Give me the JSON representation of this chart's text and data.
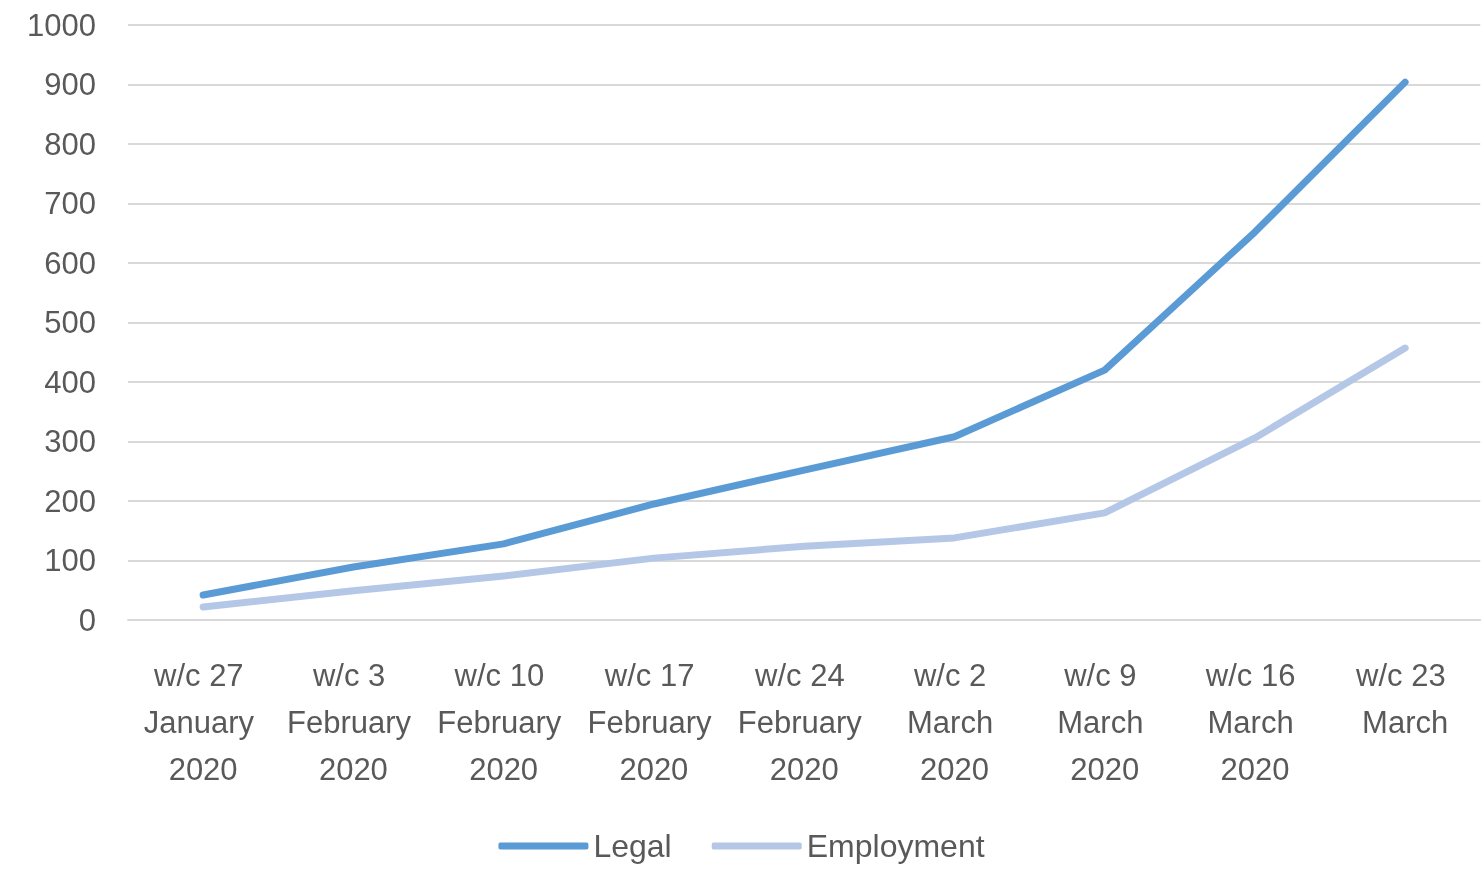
{
  "chart_data": {
    "type": "line",
    "categories": [
      "w/c 27 January 2020",
      "w/c 3 February 2020",
      "w/c 10 February 2020",
      "w/c 17 February 2020",
      "w/c 24 February 2020",
      "w/c 2 March 2020",
      "w/c 9 March 2020",
      "w/c 16 March 2020",
      "w/c 23 March"
    ],
    "series": [
      {
        "name": "Legal",
        "color": "#5b9bd5",
        "values": [
          42,
          89,
          128,
          195,
          252,
          308,
          420,
          652,
          904
        ]
      },
      {
        "name": "Employment",
        "color": "#b4c7e7",
        "values": [
          22,
          49,
          74,
          104,
          124,
          138,
          180,
          306,
          457
        ]
      }
    ],
    "ylim": [
      0,
      1000
    ],
    "yticks": [
      0,
      100,
      200,
      300,
      400,
      500,
      600,
      700,
      800,
      900,
      1000
    ],
    "grid": "y",
    "legend": "bottom",
    "marker": "none",
    "line_style": "solid"
  }
}
